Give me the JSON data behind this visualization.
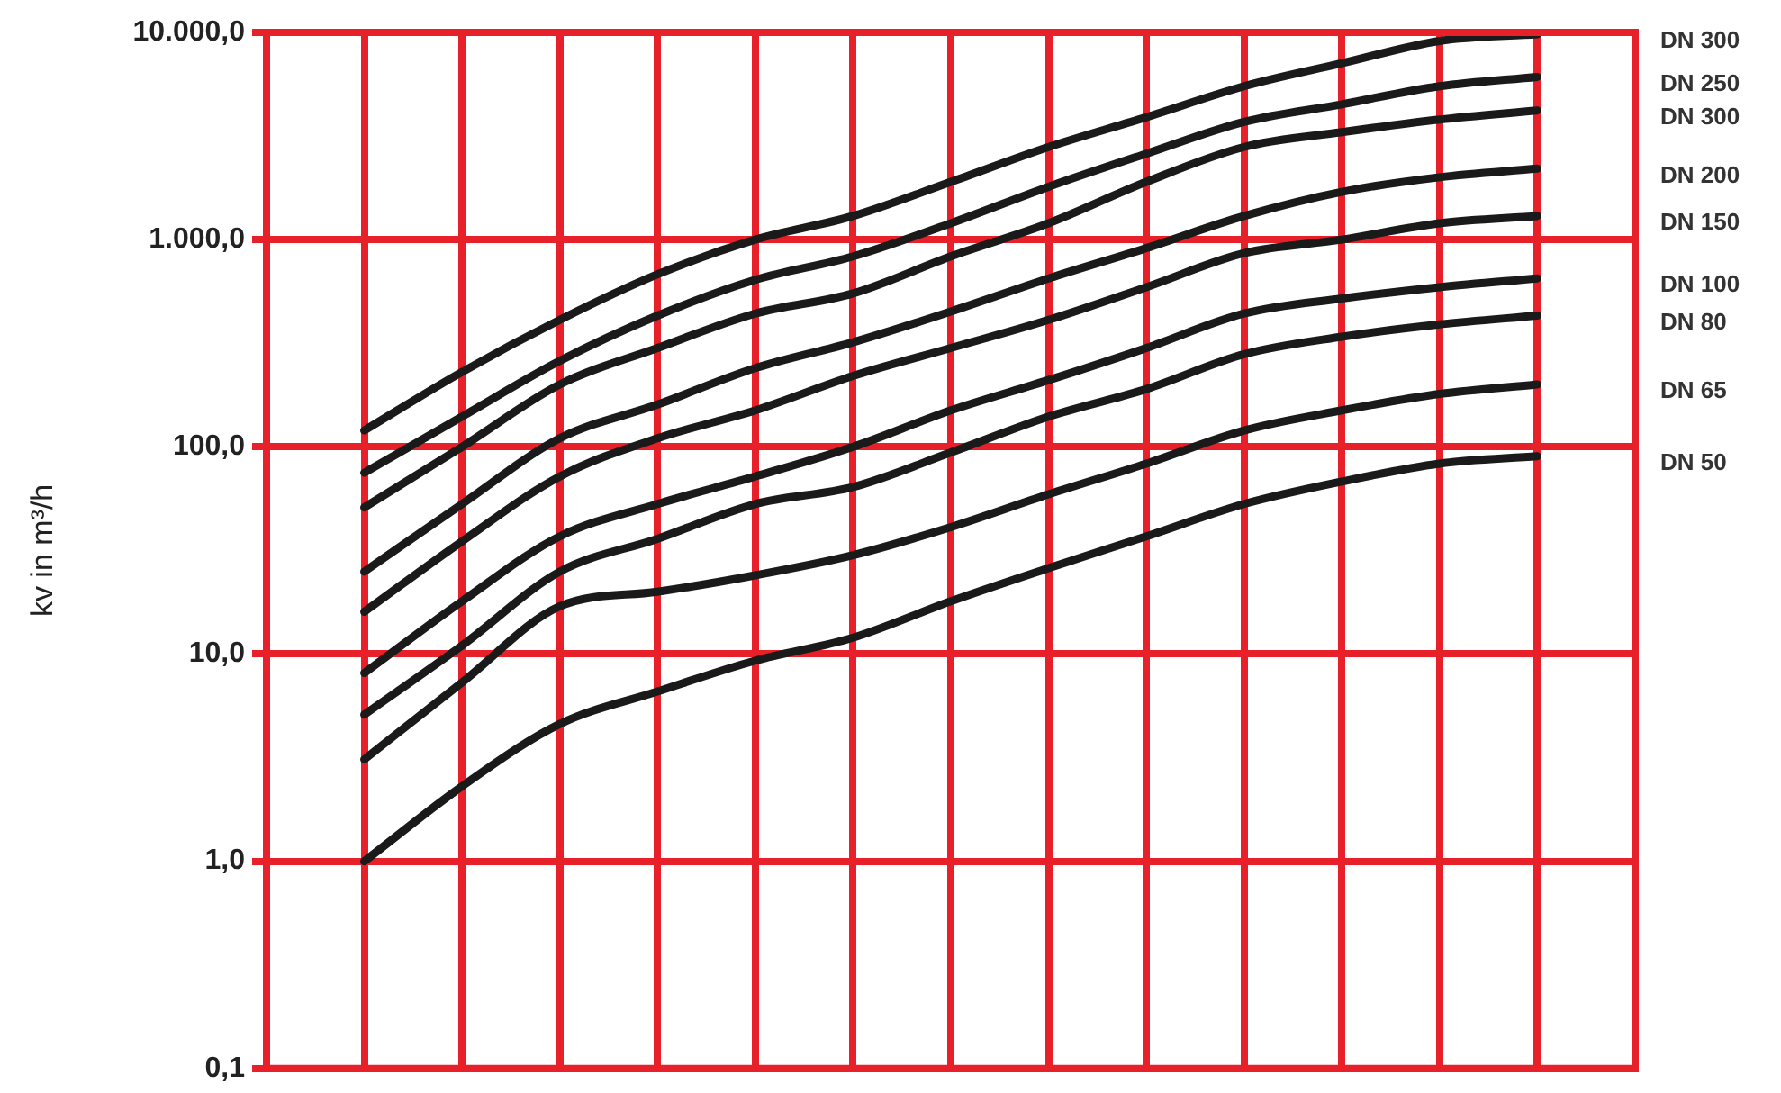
{
  "chart_data": {
    "type": "line",
    "ylabel": "kv in m³/h",
    "log": "y",
    "grid": true,
    "legend": false,
    "tick_labels": "y",
    "marker": "none",
    "line_style": "solid",
    "categories": [
      null,
      null,
      null,
      null,
      null,
      null,
      null,
      null,
      null,
      null,
      null,
      null,
      null,
      null,
      null
    ],
    "ylim": [
      0.1,
      10000
    ],
    "yticks": [
      {
        "value": 0.1,
        "label": "0,1"
      },
      {
        "value": 1,
        "label": "1,0"
      },
      {
        "value": 10,
        "label": "10,0"
      },
      {
        "value": 100,
        "label": "100,0"
      },
      {
        "value": 1000,
        "label": "1.000,0"
      },
      {
        "value": 10000,
        "label": "10.000,0"
      }
    ],
    "series": [
      {
        "name": "DN 300",
        "color": "#1a1a1a",
        "values": [
          null,
          120,
          230,
          410,
          680,
          1000,
          1300,
          1900,
          2800,
          3900,
          5500,
          7100,
          9100,
          9800,
          null
        ]
      },
      {
        "name": "DN 250",
        "color": "#1a1a1a",
        "values": [
          null,
          75,
          140,
          260,
          430,
          640,
          830,
          1200,
          1800,
          2600,
          3700,
          4500,
          5500,
          6100,
          null
        ]
      },
      {
        "name": "DN 300",
        "color": "#1a1a1a",
        "values": [
          null,
          51,
          100,
          200,
          300,
          440,
          550,
          830,
          1200,
          1900,
          2800,
          3300,
          3800,
          4200,
          null
        ]
      },
      {
        "name": "DN 200",
        "color": "#1a1a1a",
        "values": [
          null,
          25,
          53,
          110,
          160,
          240,
          320,
          450,
          650,
          910,
          1300,
          1700,
          2000,
          2200,
          null
        ]
      },
      {
        "name": "DN 150",
        "color": "#1a1a1a",
        "values": [
          null,
          16,
          35,
          72,
          110,
          150,
          220,
          300,
          410,
          590,
          860,
          1000,
          1200,
          1300,
          null
        ]
      },
      {
        "name": "DN 100",
        "color": "#1a1a1a",
        "values": [
          null,
          8.1,
          18,
          37,
          53,
          72,
          100,
          150,
          210,
          300,
          440,
          520,
          590,
          650,
          null
        ]
      },
      {
        "name": "DN 80",
        "color": "#1a1a1a",
        "values": [
          null,
          5.1,
          11,
          25,
          36,
          53,
          64,
          94,
          140,
          190,
          280,
          340,
          390,
          430,
          null
        ]
      },
      {
        "name": "DN 65",
        "color": "#1a1a1a",
        "values": [
          null,
          3.1,
          7.3,
          17,
          20,
          24,
          30,
          41,
          59,
          83,
          120,
          150,
          180,
          200,
          null
        ]
      },
      {
        "name": "DN 50",
        "color": "#1a1a1a",
        "values": [
          null,
          1.0,
          2.3,
          4.6,
          6.6,
          9.3,
          12,
          18,
          26,
          37,
          53,
          68,
          83,
          90,
          null
        ]
      }
    ]
  }
}
